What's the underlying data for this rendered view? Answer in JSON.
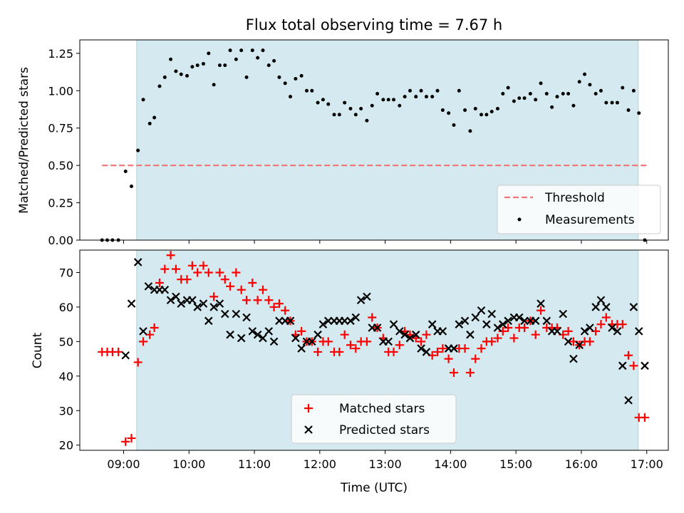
{
  "figure": {
    "title": "Flux total observing time = 7.67 h"
  },
  "chart_data": [
    {
      "type": "scatter",
      "ylabel": "Matched/Predicted stars",
      "xlabel": "",
      "xlim": [
        8.33,
        17.33
      ],
      "ylim": [
        0,
        1.34
      ],
      "xticks": [
        9,
        10,
        11,
        12,
        13,
        14,
        15,
        16,
        17
      ],
      "yticks": [
        0,
        0.25,
        0.5,
        0.75,
        1.0,
        1.25
      ],
      "ytick_labels": [
        "0.00",
        "0.25",
        "0.50",
        "0.75",
        "1.00",
        "1.25"
      ],
      "shaded_span": [
        9.2,
        16.87
      ],
      "shade_color": "#d4eaf0",
      "legend_position": "lower right",
      "threshold": {
        "name": "Threshold",
        "y": 0.5,
        "x": [
          8.67,
          17.0
        ],
        "color": "#f07878",
        "style": "dashed"
      },
      "series": [
        {
          "name": "Measurements",
          "color": "#000000",
          "marker": "dot",
          "x": [
            8.67,
            8.75,
            8.83,
            8.92,
            9.03,
            9.12,
            9.22,
            9.3,
            9.4,
            9.47,
            9.55,
            9.63,
            9.72,
            9.8,
            9.88,
            9.97,
            10.05,
            10.13,
            10.22,
            10.3,
            10.38,
            10.47,
            10.55,
            10.63,
            10.72,
            10.8,
            10.88,
            10.97,
            11.05,
            11.13,
            11.22,
            11.3,
            11.38,
            11.47,
            11.55,
            11.63,
            11.72,
            11.8,
            11.88,
            11.97,
            12.05,
            12.13,
            12.22,
            12.3,
            12.38,
            12.47,
            12.55,
            12.63,
            12.72,
            12.8,
            12.88,
            12.97,
            13.05,
            13.13,
            13.22,
            13.3,
            13.38,
            13.47,
            13.55,
            13.63,
            13.72,
            13.8,
            13.88,
            13.97,
            14.05,
            14.13,
            14.22,
            14.3,
            14.38,
            14.47,
            14.55,
            14.63,
            14.72,
            14.8,
            14.88,
            14.97,
            15.05,
            15.13,
            15.22,
            15.3,
            15.38,
            15.47,
            15.55,
            15.63,
            15.72,
            15.8,
            15.88,
            15.97,
            16.05,
            16.13,
            16.22,
            16.3,
            16.38,
            16.47,
            16.55,
            16.63,
            16.72,
            16.8,
            16.88,
            16.97
          ],
          "values": [
            0,
            0,
            0,
            0,
            0.46,
            0.36,
            0.6,
            0.94,
            0.78,
            0.82,
            1.03,
            1.09,
            1.21,
            1.13,
            1.11,
            1.1,
            1.16,
            1.17,
            1.18,
            1.25,
            1.04,
            1.17,
            1.17,
            1.27,
            1.21,
            1.27,
            1.09,
            1.27,
            1.22,
            1.27,
            1.17,
            1.2,
            1.09,
            1.05,
            0.96,
            1.08,
            1.1,
            1.0,
            1.0,
            0.92,
            0.94,
            0.91,
            0.84,
            0.84,
            0.92,
            0.88,
            0.84,
            0.88,
            0.8,
            0.9,
            0.98,
            0.94,
            0.94,
            0.94,
            0.9,
            0.96,
            1.0,
            0.96,
            1.0,
            0.96,
            0.96,
            1.0,
            0.87,
            0.85,
            0.77,
            1.0,
            0.87,
            0.73,
            0.88,
            0.84,
            0.84,
            0.86,
            0.88,
            0.98,
            1.02,
            0.93,
            0.95,
            0.95,
            0.98,
            0.94,
            1.05,
            0.98,
            0.89,
            0.96,
            0.98,
            0.98,
            0.9,
            1.06,
            1.11,
            1.04,
            0.98,
            1.0,
            0.92,
            0.92,
            0.92,
            1.02,
            0.87,
            1.0,
            0.85,
            0.0
          ]
        }
      ]
    },
    {
      "type": "scatter",
      "ylabel": "Count",
      "xlabel": "Time (UTC)",
      "xlim": [
        8.33,
        17.33
      ],
      "ylim": [
        18.5,
        76.5
      ],
      "xticks": [
        9,
        10,
        11,
        12,
        13,
        14,
        15,
        16,
        17
      ],
      "xtick_labels": [
        "09:00",
        "10:00",
        "11:00",
        "12:00",
        "13:00",
        "14:00",
        "15:00",
        "16:00",
        "17:00"
      ],
      "yticks": [
        20,
        30,
        40,
        50,
        60,
        70
      ],
      "ytick_labels": [
        "20",
        "30",
        "40",
        "50",
        "60",
        "70"
      ],
      "shaded_span": [
        9.2,
        16.87
      ],
      "shade_color": "#d4eaf0",
      "legend_position": "lower center",
      "series": [
        {
          "name": "Matched stars",
          "color": "#ff0000",
          "marker": "plus",
          "x": [
            8.67,
            8.75,
            8.83,
            8.92,
            9.03,
            9.12,
            9.22,
            9.3,
            9.4,
            9.47,
            9.55,
            9.63,
            9.72,
            9.8,
            9.88,
            9.97,
            10.05,
            10.13,
            10.22,
            10.3,
            10.38,
            10.47,
            10.55,
            10.63,
            10.72,
            10.8,
            10.88,
            10.97,
            11.05,
            11.13,
            11.22,
            11.3,
            11.38,
            11.47,
            11.55,
            11.63,
            11.72,
            11.8,
            11.88,
            11.97,
            12.05,
            12.13,
            12.22,
            12.3,
            12.38,
            12.47,
            12.55,
            12.63,
            12.72,
            12.8,
            12.88,
            12.97,
            13.05,
            13.13,
            13.22,
            13.3,
            13.38,
            13.47,
            13.55,
            13.63,
            13.72,
            13.8,
            13.88,
            13.97,
            14.05,
            14.13,
            14.22,
            14.3,
            14.38,
            14.47,
            14.55,
            14.63,
            14.72,
            14.8,
            14.88,
            14.97,
            15.05,
            15.13,
            15.22,
            15.3,
            15.38,
            15.47,
            15.55,
            15.63,
            15.72,
            15.8,
            15.88,
            15.97,
            16.05,
            16.13,
            16.22,
            16.3,
            16.38,
            16.47,
            16.55,
            16.63,
            16.72,
            16.8,
            16.88,
            16.97
          ],
          "values": [
            47,
            47,
            47,
            47,
            21,
            22,
            44,
            50,
            52,
            54,
            67,
            71,
            75,
            71,
            68,
            68,
            72,
            70,
            72,
            70,
            63,
            70,
            68,
            66,
            70,
            65,
            62,
            67,
            62,
            65,
            62,
            60,
            61,
            59,
            56,
            52,
            53,
            50,
            50,
            47,
            50,
            50,
            47,
            47,
            52,
            49,
            48,
            50,
            50,
            57,
            54,
            51,
            47,
            47,
            49,
            53,
            52,
            51,
            50,
            52,
            46,
            47,
            48,
            45,
            41,
            48,
            48,
            41,
            45,
            48,
            50,
            50,
            51,
            53,
            54,
            51,
            54,
            54,
            56,
            52,
            59,
            54,
            54,
            54,
            52,
            53,
            50,
            49,
            50,
            50,
            53,
            55,
            57,
            55,
            55,
            55,
            46,
            43,
            28,
            28
          ]
        },
        {
          "name": "Predicted stars",
          "color": "#000000",
          "marker": "x",
          "x": [
            9.03,
            9.12,
            9.22,
            9.3,
            9.38,
            9.47,
            9.55,
            9.63,
            9.72,
            9.8,
            9.88,
            9.97,
            10.05,
            10.13,
            10.22,
            10.3,
            10.38,
            10.47,
            10.55,
            10.63,
            10.72,
            10.8,
            10.88,
            10.97,
            11.05,
            11.13,
            11.22,
            11.3,
            11.38,
            11.47,
            11.55,
            11.63,
            11.72,
            11.8,
            11.88,
            11.97,
            12.05,
            12.13,
            12.22,
            12.3,
            12.38,
            12.47,
            12.55,
            12.63,
            12.72,
            12.8,
            12.88,
            12.97,
            13.05,
            13.13,
            13.22,
            13.3,
            13.38,
            13.47,
            13.55,
            13.63,
            13.72,
            13.8,
            13.88,
            13.97,
            14.05,
            14.13,
            14.22,
            14.3,
            14.38,
            14.47,
            14.55,
            14.63,
            14.72,
            14.8,
            14.88,
            14.97,
            15.05,
            15.13,
            15.22,
            15.3,
            15.38,
            15.47,
            15.55,
            15.63,
            15.72,
            15.8,
            15.88,
            15.97,
            16.05,
            16.13,
            16.22,
            16.3,
            16.38,
            16.47,
            16.55,
            16.63,
            16.72,
            16.8,
            16.88,
            16.97
          ],
          "values": [
            46,
            61,
            73,
            53,
            66,
            65,
            65,
            65,
            62,
            63,
            61,
            62,
            62,
            60,
            61,
            56,
            60,
            61,
            58,
            52,
            58,
            51,
            57,
            53,
            52,
            51,
            53,
            50,
            56,
            56,
            56,
            51,
            48,
            50,
            50,
            52,
            55,
            56,
            56,
            56,
            56,
            56,
            57,
            62,
            63,
            54,
            54,
            50,
            50,
            55,
            53,
            52,
            51,
            52,
            48,
            47,
            55,
            53,
            53,
            48,
            48,
            55,
            56,
            52,
            57,
            59,
            55,
            58,
            54,
            55,
            56,
            57,
            57,
            56,
            56,
            56,
            61,
            56,
            53,
            53,
            58,
            50,
            45,
            49,
            53,
            54,
            60,
            62,
            60,
            54,
            53,
            43,
            33,
            60,
            53,
            43
          ]
        }
      ]
    }
  ]
}
